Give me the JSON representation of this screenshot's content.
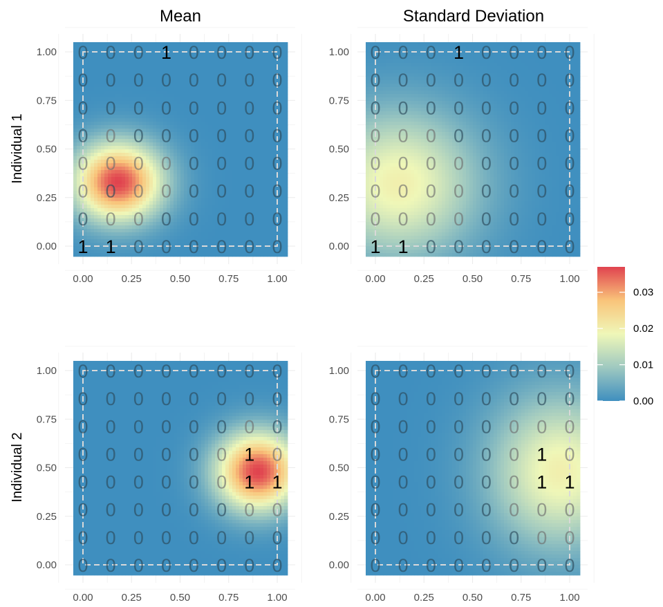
{
  "chart_data": {
    "type": "heatmap",
    "column_titles": [
      "Mean",
      "Standard Deviation"
    ],
    "row_titles": [
      "Individual 1",
      "Individual 2"
    ],
    "x_ticks": [
      "0.00",
      "0.25",
      "0.50",
      "0.75",
      "1.00"
    ],
    "y_ticks": [
      "0.00",
      "0.25",
      "0.50",
      "0.75",
      "1.00"
    ],
    "xlim": [
      0,
      1
    ],
    "ylim": [
      0,
      1
    ],
    "grid": true,
    "legend": {
      "position": "right",
      "ticks": [
        "0.00",
        "0.01",
        "0.02",
        "0.03"
      ],
      "tick_values": [
        0.0,
        0.01,
        0.02,
        0.03
      ],
      "range": [
        0,
        0.037
      ],
      "colors": [
        "#3f8fbf",
        "#9fc9c0",
        "#eff7b8",
        "#f9c47a",
        "#e0434f"
      ]
    },
    "grid_x": [
      0,
      0.143,
      0.286,
      0.429,
      0.571,
      0.714,
      0.857,
      1.0
    ],
    "grid_y": [
      1.0,
      0.857,
      0.714,
      0.571,
      0.429,
      0.286,
      0.143,
      0.0
    ],
    "panels": [
      {
        "row": "Individual 1",
        "column": "Mean",
        "hotspot": {
          "x": 0.18,
          "y": 0.33,
          "peak": 0.037,
          "sx": 0.16,
          "sy": 0.14
        },
        "labels": [
          [
            "0",
            "0",
            "0",
            "1",
            "0",
            "0",
            "0",
            "0"
          ],
          [
            "0",
            "0",
            "0",
            "0",
            "0",
            "0",
            "0",
            "0"
          ],
          [
            "0",
            "0",
            "0",
            "0",
            "0",
            "0",
            "0",
            "0"
          ],
          [
            "0",
            "0",
            "0",
            "0",
            "0",
            "0",
            "0",
            "0"
          ],
          [
            "0",
            "0",
            "0",
            "0",
            "0",
            "0",
            "0",
            "0"
          ],
          [
            "0",
            "0",
            "0",
            "0",
            "0",
            "0",
            "0",
            "0"
          ],
          [
            "0",
            "0",
            "0",
            "0",
            "0",
            "0",
            "0",
            "0"
          ],
          [
            "1",
            "1",
            "0",
            "0",
            "0",
            "0",
            "0",
            "0"
          ]
        ]
      },
      {
        "row": "Individual 1",
        "column": "Standard Deviation",
        "hotspot": {
          "x": 0.12,
          "y": 0.32,
          "peak": 0.02,
          "sx": 0.28,
          "sy": 0.26
        },
        "labels": [
          [
            "0",
            "0",
            "0",
            "1",
            "0",
            "0",
            "0",
            "0"
          ],
          [
            "0",
            "0",
            "0",
            "0",
            "0",
            "0",
            "0",
            "0"
          ],
          [
            "0",
            "0",
            "0",
            "0",
            "0",
            "0",
            "0",
            "0"
          ],
          [
            "0",
            "0",
            "0",
            "0",
            "0",
            "0",
            "0",
            "0"
          ],
          [
            "0",
            "0",
            "0",
            "0",
            "0",
            "0",
            "0",
            "0"
          ],
          [
            "0",
            "0",
            "0",
            "0",
            "0",
            "0",
            "0",
            "0"
          ],
          [
            "0",
            "0",
            "0",
            "0",
            "0",
            "0",
            "0",
            "0"
          ],
          [
            "1",
            "1",
            "0",
            "0",
            "0",
            "0",
            "0",
            "0"
          ]
        ]
      },
      {
        "row": "Individual 2",
        "column": "Mean",
        "hotspot": {
          "x": 0.9,
          "y": 0.48,
          "peak": 0.037,
          "sx": 0.15,
          "sy": 0.14
        },
        "labels": [
          [
            "0",
            "0",
            "0",
            "0",
            "0",
            "0",
            "0",
            "0"
          ],
          [
            "0",
            "0",
            "0",
            "0",
            "0",
            "0",
            "0",
            "0"
          ],
          [
            "0",
            "0",
            "0",
            "0",
            "0",
            "0",
            "0",
            "0"
          ],
          [
            "0",
            "0",
            "0",
            "0",
            "0",
            "0",
            "1",
            "0"
          ],
          [
            "0",
            "0",
            "0",
            "0",
            "0",
            "0",
            "1",
            "1"
          ],
          [
            "0",
            "0",
            "0",
            "0",
            "0",
            "0",
            "0",
            "0"
          ],
          [
            "0",
            "0",
            "0",
            "0",
            "0",
            "0",
            "0",
            "0"
          ],
          [
            "0",
            "0",
            "0",
            "0",
            "0",
            "0",
            "0",
            "0"
          ]
        ]
      },
      {
        "row": "Individual 2",
        "column": "Standard Deviation",
        "hotspot": {
          "x": 0.95,
          "y": 0.48,
          "peak": 0.02,
          "sx": 0.25,
          "sy": 0.27
        },
        "labels": [
          [
            "0",
            "0",
            "0",
            "0",
            "0",
            "0",
            "0",
            "0"
          ],
          [
            "0",
            "0",
            "0",
            "0",
            "0",
            "0",
            "0",
            "0"
          ],
          [
            "0",
            "0",
            "0",
            "0",
            "0",
            "0",
            "0",
            "0"
          ],
          [
            "0",
            "0",
            "0",
            "0",
            "0",
            "0",
            "1",
            "0"
          ],
          [
            "0",
            "0",
            "0",
            "0",
            "0",
            "0",
            "1",
            "1"
          ],
          [
            "0",
            "0",
            "0",
            "0",
            "0",
            "0",
            "0",
            "0"
          ],
          [
            "0",
            "0",
            "0",
            "0",
            "0",
            "0",
            "0",
            "0"
          ],
          [
            "0",
            "0",
            "0",
            "0",
            "0",
            "0",
            "0",
            "0"
          ]
        ]
      }
    ]
  }
}
